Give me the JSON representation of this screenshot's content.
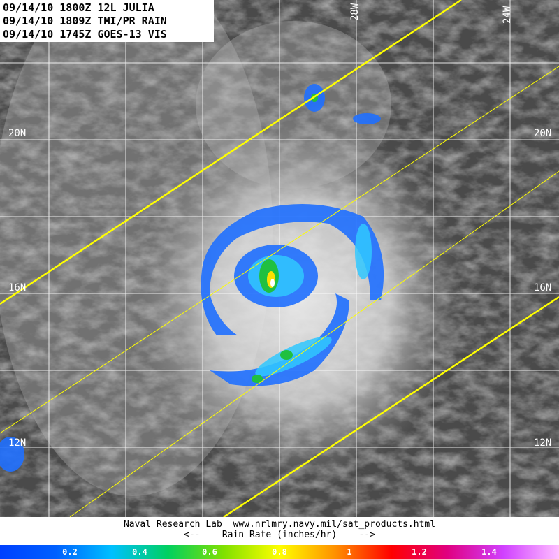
{
  "header": {
    "lines": [
      "09/14/10 1800Z 12L JULIA",
      "09/14/10 1809Z TMI/PR RAIN",
      "09/14/10 1745Z GOES-13 VIS"
    ]
  },
  "grid": {
    "lon_labels": [
      "28W",
      "24W"
    ],
    "lat_labels": [
      "20N",
      "16N",
      "12N"
    ]
  },
  "footer": {
    "credit": "Naval Research Lab  www.nrlmry.navy.mil/sat_products.html",
    "legend_title": "<--    Rain Rate (inches/hr)    -->"
  },
  "colorbar": {
    "ticks": [
      0.2,
      0.4,
      0.6,
      0.8,
      1,
      1.2,
      1.4
    ]
  }
}
